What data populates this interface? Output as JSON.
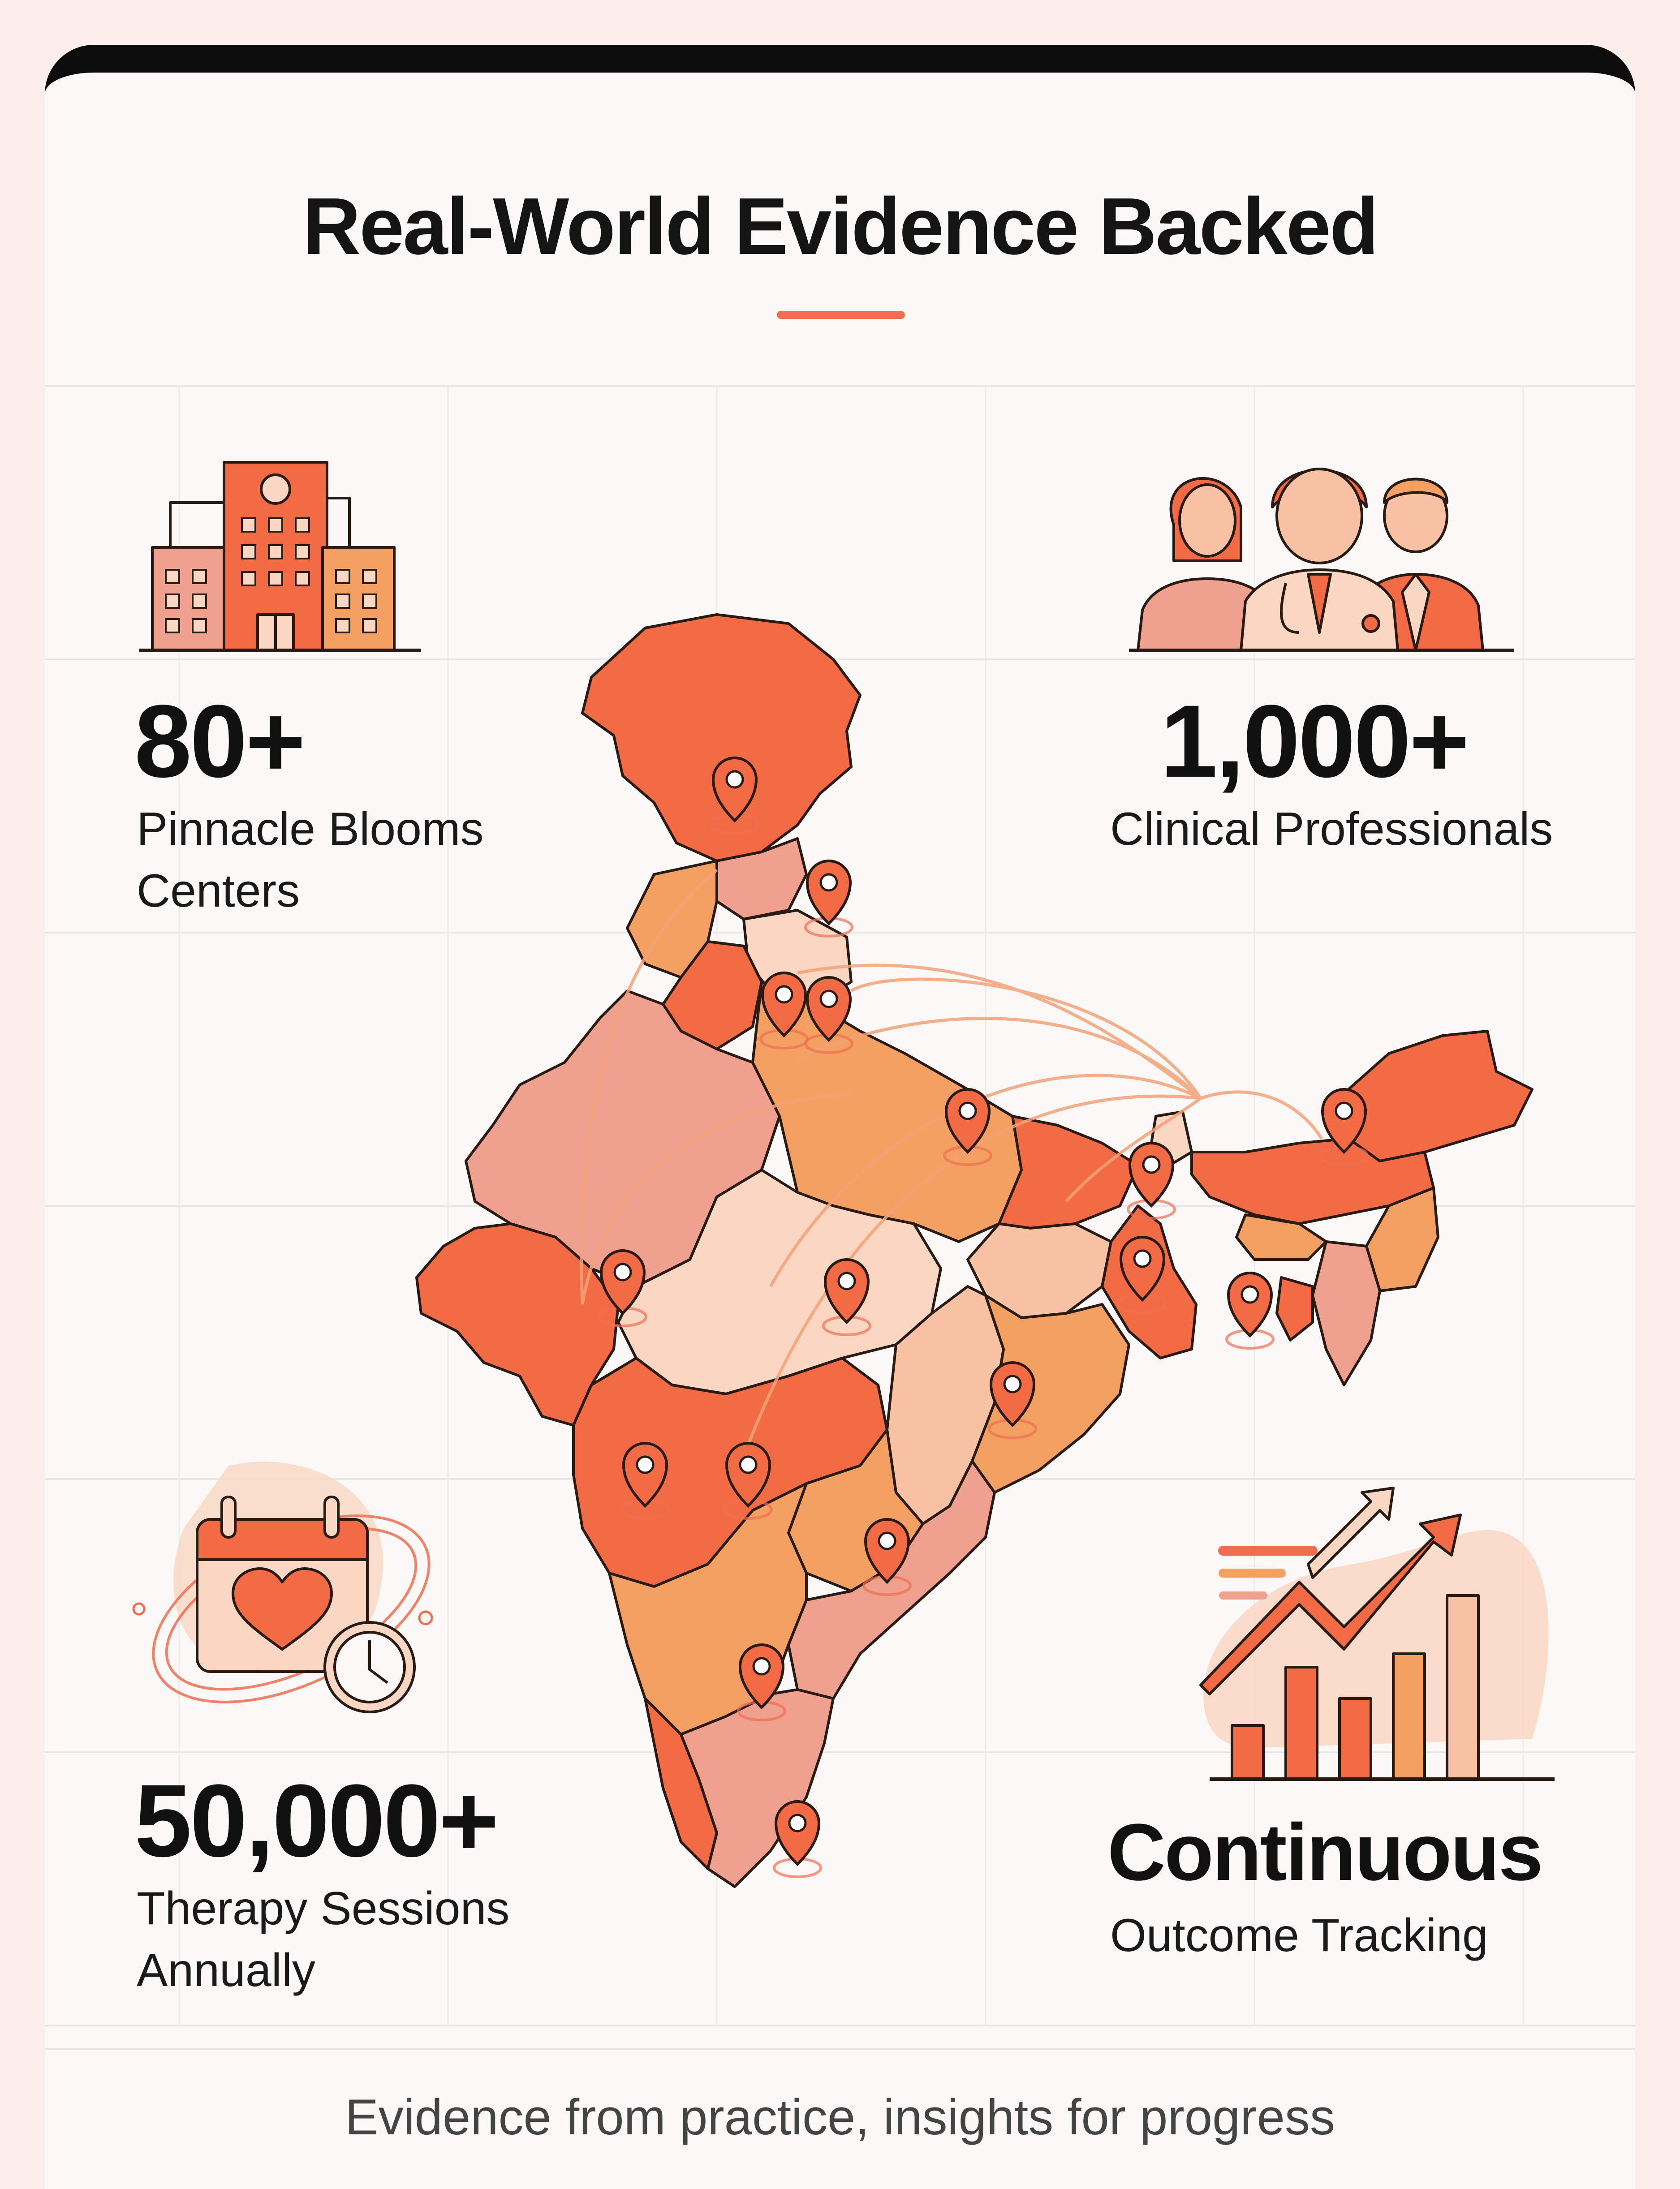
{
  "title": "Real-World Evidence Backed",
  "stats": {
    "centers": {
      "value": "80+",
      "label_line1": "Pinnacle Blooms",
      "label_line2": "Centers"
    },
    "professionals": {
      "value": "1,000+",
      "label": "Clinical Professionals"
    },
    "sessions": {
      "value": "50,000+",
      "label_line1": "Therapy Sessions",
      "label_line2": "Annually"
    },
    "tracking": {
      "value": "Continuous",
      "label": "Outcome Tracking"
    }
  },
  "footer": "Evidence from practice, insights for progress",
  "colors": {
    "accent": "#ef6e52",
    "map_dark": "#f26b45",
    "map_mid": "#f4a062",
    "map_pink": "#f0a08f",
    "map_light": "#fad7c2"
  },
  "icons": [
    "hospital-building-icon",
    "clinicians-group-icon",
    "calendar-heart-clock-icon",
    "growth-chart-icon",
    "location-pin-icon"
  ]
}
